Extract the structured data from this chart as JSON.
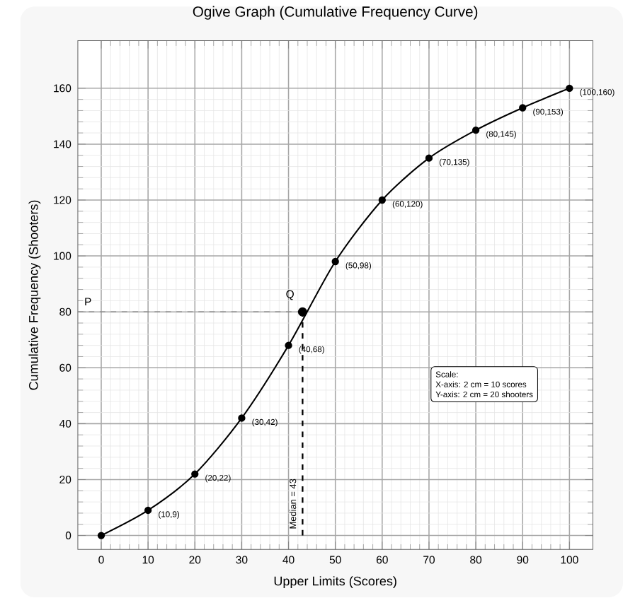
{
  "chart_data": {
    "type": "line",
    "title": "Ogive Graph (Cumulative Frequency Curve)",
    "xlabel": "Upper Limits (Scores)",
    "ylabel": "Cumulative Frequency (Shooters)",
    "x": [
      0,
      10,
      20,
      30,
      40,
      50,
      60,
      70,
      80,
      90,
      100
    ],
    "series": [
      {
        "color": "#000000",
        "values": [
          0,
          9,
          22,
          42,
          68,
          98,
          120,
          135,
          145,
          153,
          160
        ]
      },
      {
        "type": "scatter",
        "color": "#000000",
        "x": [
          43
        ],
        "values": [
          80
        ]
      }
    ],
    "marker": "circle",
    "grid": true,
    "xlim": [
      -5,
      105
    ],
    "xticks": [
      0,
      10,
      20,
      30,
      40,
      50,
      60,
      70,
      80,
      90,
      100
    ],
    "ylim": [
      -5,
      177
    ],
    "yticks": [
      0,
      20,
      40,
      60,
      80,
      100,
      120,
      140,
      160
    ],
    "ref_lines": [
      {
        "axis": "y",
        "value": 80,
        "label": "P",
        "color": "#888888",
        "line_style": "dashed"
      },
      {
        "axis": "x",
        "value": 43,
        "label": "Median = 43",
        "color": "#000000",
        "line_style": "dashed"
      }
    ],
    "annotations": [
      {
        "text": "Q",
        "x": 43,
        "y": 80
      },
      {
        "text": "(10,9)",
        "x": 10,
        "y": 9
      },
      {
        "text": "(20,22)",
        "x": 20,
        "y": 22
      },
      {
        "text": "(30,42)",
        "x": 30,
        "y": 42
      },
      {
        "text": "(40,68)",
        "x": 40,
        "y": 68
      },
      {
        "text": "(50,98)",
        "x": 50,
        "y": 98
      },
      {
        "text": "(60,120)",
        "x": 60,
        "y": 120
      },
      {
        "text": "(70,135)",
        "x": 70,
        "y": 135
      },
      {
        "text": "(80,145)",
        "x": 80,
        "y": 145
      },
      {
        "text": "(90,153)",
        "x": 90,
        "y": 153
      },
      {
        "text": "(100,160)",
        "x": 100,
        "y": 160
      },
      "Scale:",
      "X-axis: 2 cm = 10 scores",
      "Y-axis: 2 cm = 20 shooters"
    ]
  }
}
